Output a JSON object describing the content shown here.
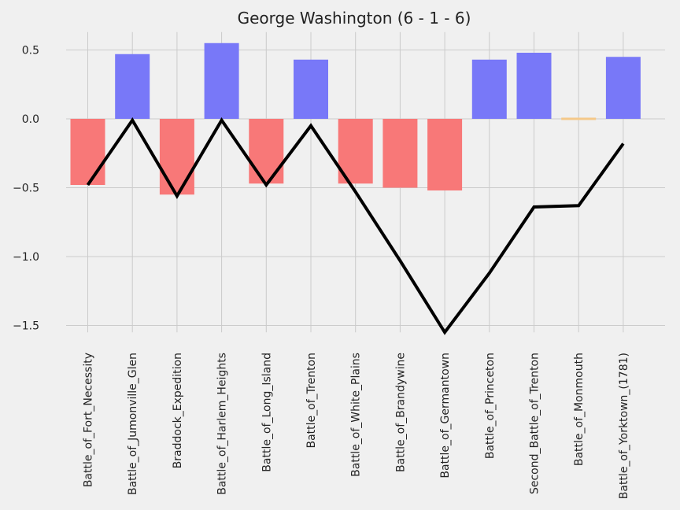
{
  "chart_data": {
    "type": "bar",
    "title": "George Washington (6 - 1 - 6)",
    "xlabel": "",
    "ylabel": "",
    "ylim": [
      -1.55,
      0.63
    ],
    "yticks": [
      0.5,
      0.0,
      -0.5,
      -1.0,
      -1.5
    ],
    "ytick_labels": [
      "0.5",
      "0.0",
      "−0.5",
      "−1.0",
      "−1.5"
    ],
    "grid": true,
    "categories": [
      "Battle_of_Fort_Necessity",
      "Battle_of_Jumonville_Glen",
      "Braddock_Expedition",
      "Battle_of_Harlem_Heights",
      "Battle_of_Long_Island",
      "Battle_of_Trenton",
      "Battle_of_White_Plains",
      "Battle_of_Brandywine",
      "Battle_of_Germantown",
      "Battle_of_Princeton",
      "Second_Battle_of_Trenton",
      "Battle_of_Monmouth",
      "Battle_of_Yorktown_(1781)"
    ],
    "series": [
      {
        "type": "bar",
        "values": [
          -0.48,
          0.47,
          -0.55,
          0.55,
          -0.47,
          0.43,
          -0.47,
          -0.5,
          -0.52,
          0.43,
          0.48,
          0.01,
          0.45
        ],
        "outcome": [
          "loss",
          "win",
          "loss",
          "win",
          "loss",
          "win",
          "loss",
          "loss",
          "loss",
          "win",
          "win",
          "draw",
          "win"
        ]
      },
      {
        "type": "line",
        "values": [
          -0.48,
          -0.01,
          -0.56,
          -0.01,
          -0.48,
          -0.05,
          -0.53,
          -1.03,
          -1.55,
          -1.12,
          -0.64,
          -0.63,
          -0.18
        ]
      }
    ],
    "colors": {
      "win": "#7878f8",
      "loss": "#f87878",
      "draw": "#f5c98a",
      "line": "#000000",
      "background": "#f0f0f0"
    }
  }
}
